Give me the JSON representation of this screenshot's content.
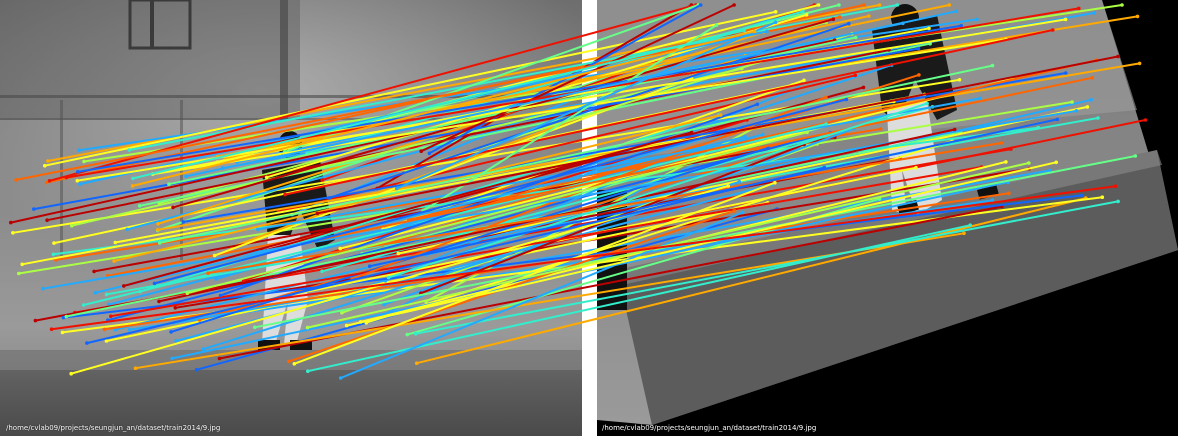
{
  "left_image": {
    "caption": "/home/cvlab09/projects/seungjun_an/dataset/train2014/9.jpg"
  },
  "right_image": {
    "caption": "/home/cvlab09/projects/seungjun_an/dataset/train2014/9.jpg"
  },
  "colors": {
    "match_palette": [
      "#ffff22",
      "#aaff44",
      "#66ff88",
      "#33eecc",
      "#22aaff",
      "#1166ff",
      "#ffaa00",
      "#ff6600",
      "#ee1100",
      "#bb0000"
    ]
  }
}
